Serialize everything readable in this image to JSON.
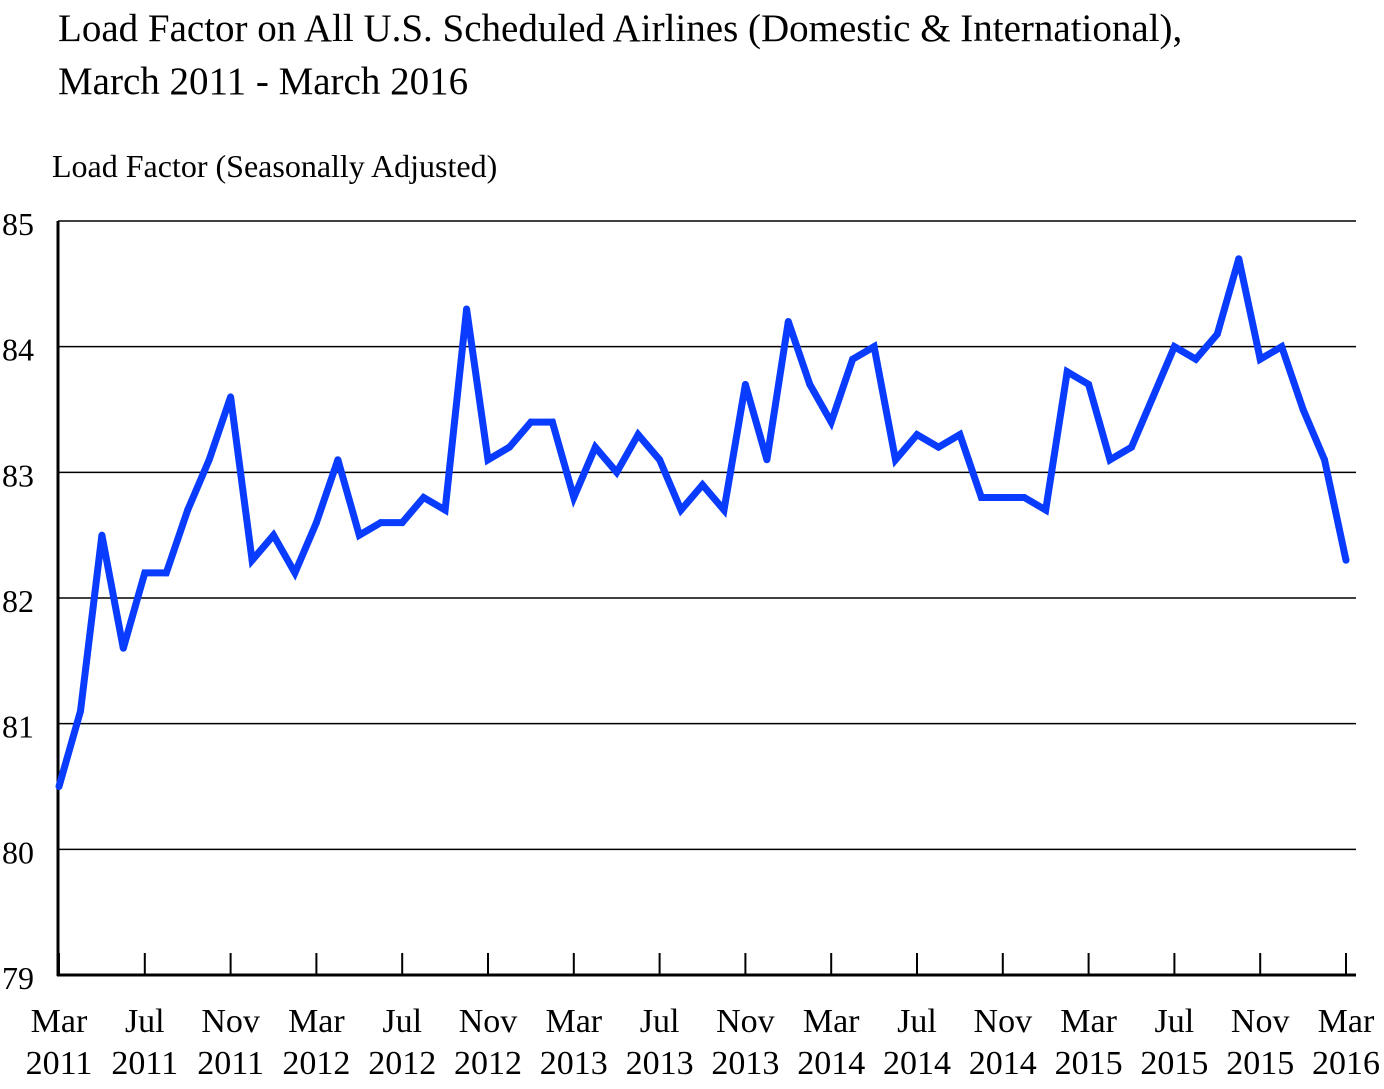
{
  "chart_data": {
    "type": "line",
    "title_line1": "Load Factor on All U.S. Scheduled Airlines (Domestic & International),",
    "title_line2": "March 2011 - March 2016",
    "ylabel": "Load Factor (Seasonally Adjusted)",
    "xlabel": "",
    "ylim": [
      79,
      85
    ],
    "yticks": [
      79,
      80,
      81,
      82,
      83,
      84,
      85
    ],
    "grid": true,
    "line_color": "#0a3cff",
    "x_tick_labels": [
      {
        "month": "Mar",
        "year": "2011",
        "index": 0
      },
      {
        "month": "Jul",
        "year": "2011",
        "index": 4
      },
      {
        "month": "Nov",
        "year": "2011",
        "index": 8
      },
      {
        "month": "Mar",
        "year": "2012",
        "index": 12
      },
      {
        "month": "Jul",
        "year": "2012",
        "index": 16
      },
      {
        "month": "Nov",
        "year": "2012",
        "index": 20
      },
      {
        "month": "Mar",
        "year": "2013",
        "index": 24
      },
      {
        "month": "Jul",
        "year": "2013",
        "index": 28
      },
      {
        "month": "Nov",
        "year": "2013",
        "index": 32
      },
      {
        "month": "Mar",
        "year": "2014",
        "index": 36
      },
      {
        "month": "Jul",
        "year": "2014",
        "index": 40
      },
      {
        "month": "Nov",
        "year": "2014",
        "index": 44
      },
      {
        "month": "Mar",
        "year": "2015",
        "index": 48
      },
      {
        "month": "Jul",
        "year": "2015",
        "index": 52
      },
      {
        "month": "Nov",
        "year": "2015",
        "index": 56
      },
      {
        "month": "Mar",
        "year": "2016",
        "index": 60
      }
    ],
    "series": [
      {
        "name": "Load Factor",
        "x_start": "Mar 2011",
        "frequency": "monthly",
        "values": [
          80.5,
          81.1,
          82.5,
          81.6,
          82.2,
          82.2,
          82.7,
          83.1,
          83.6,
          82.3,
          82.5,
          82.2,
          82.6,
          83.1,
          82.5,
          82.6,
          82.6,
          82.8,
          82.7,
          84.3,
          83.1,
          83.2,
          83.4,
          83.4,
          82.8,
          83.2,
          83.0,
          83.3,
          83.1,
          82.7,
          82.9,
          82.7,
          83.7,
          83.1,
          84.2,
          83.7,
          83.4,
          83.9,
          84.0,
          83.1,
          83.3,
          83.2,
          83.3,
          82.8,
          82.8,
          82.8,
          82.7,
          83.8,
          83.7,
          83.1,
          83.2,
          83.6,
          84.0,
          83.9,
          84.1,
          84.7,
          83.9,
          84.0,
          83.5,
          83.1,
          82.3
        ]
      }
    ]
  }
}
